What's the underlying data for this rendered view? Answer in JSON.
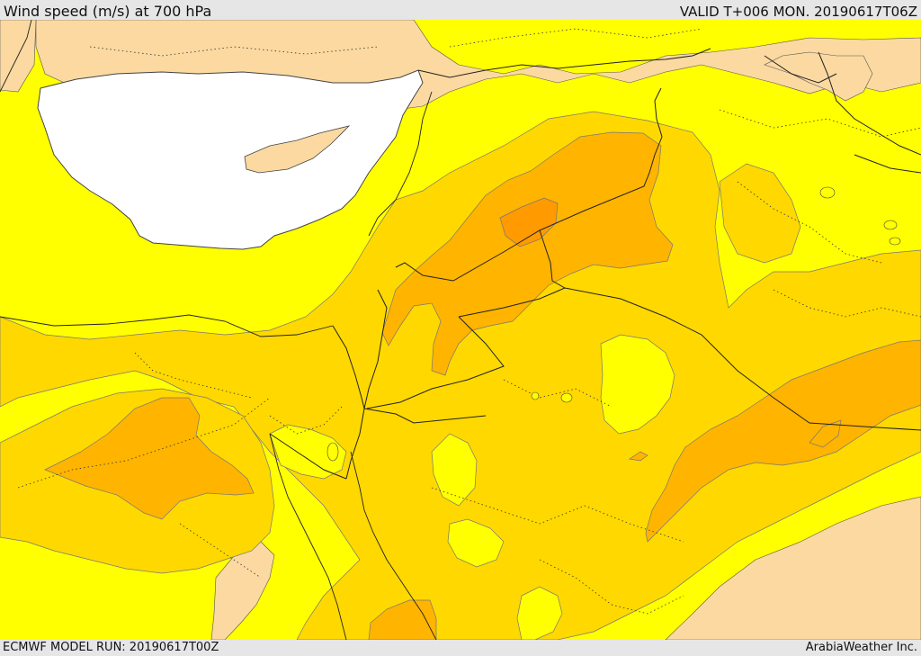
{
  "header": {
    "title": "Wind speed (m/s) at 700 hPa",
    "valid": "VALID T+006 MON. 20190617T06Z"
  },
  "footer": {
    "model_run": "ECMWF MODEL RUN: 20190617T00Z",
    "brand": "ArabiaWeather Inc."
  },
  "colors": {
    "sea": "#ffffff",
    "lt5": "#fbd9a1",
    "from5to10": "#ffff00",
    "from10to15": "#ffd800",
    "from15to20": "#ffb400",
    "from20to25": "#ff9a00",
    "boundaries": "#222222"
  }
}
